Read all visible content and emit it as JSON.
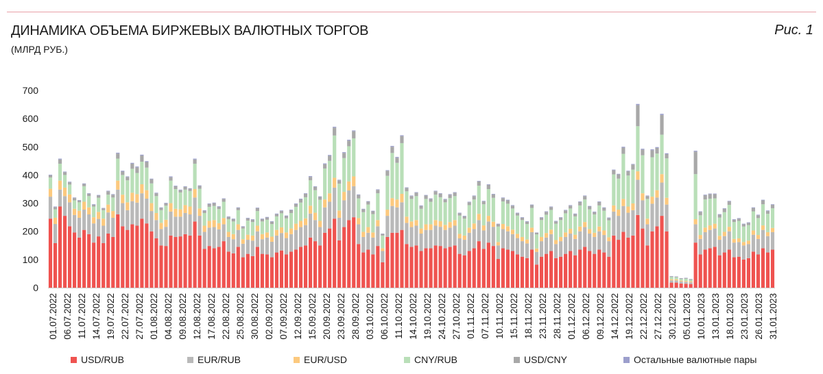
{
  "header": {
    "title": "ДИНАМИКА ОБЪЕМА БИРЖЕВЫХ ВАЛЮТНЫХ ТОРГОВ",
    "subtitle": "(МЛРД РУБ.)",
    "figure_label": "Рис. 1"
  },
  "colors": {
    "accent_rule": "#e8a0a7",
    "usd_rub": "#ef5350",
    "eur_rub": "#b9b9b9",
    "eur_usd": "#fcc97e",
    "cny_rub": "#b9dfb8",
    "usd_cny": "#a8a8a8",
    "other": "#9c9fcc"
  },
  "chart_data": {
    "type": "bar",
    "stacked": true,
    "title": "ДИНАМИКА ОБЪЕМА БИРЖЕВЫХ ВАЛЮТНЫХ ТОРГОВ",
    "ylabel": "",
    "xlabel": "",
    "ylim": [
      0,
      700
    ],
    "yticks": [
      0,
      100,
      200,
      300,
      400,
      500,
      600,
      700
    ],
    "grid": false,
    "legend_position": "bottom",
    "xtick_labels": [
      "01.07.2022",
      "06.07.2022",
      "11.07.2022",
      "14.07.2022",
      "19.07.2022",
      "22.07.2022",
      "27.07.2022",
      "01.08.2022",
      "04.08.2022",
      "09.08.2022",
      "12.08.2022",
      "17.08.2022",
      "22.08.2022",
      "25.08.2022",
      "30.08.2022",
      "02.09.2022",
      "07.09.2022",
      "12.09.2022",
      "15.09.2022",
      "20.09.2022",
      "23.09.2022",
      "28.09.2022",
      "03.10.2022",
      "06.10.2022",
      "11.10.2022",
      "14.10.2022",
      "19.10.2022",
      "24.10.2022",
      "27.10.2022",
      "01.11.2022",
      "07.11.2022",
      "10.11.2022",
      "15.11.2022",
      "18.11.2022",
      "23.11.2022",
      "28.11.2022",
      "01.12.2022",
      "06.12.2022",
      "09.12.2022",
      "14.12.2022",
      "19.12.2022",
      "22.12.2022",
      "27.12.2022",
      "30.12.2022",
      "05.01.2023",
      "10.01.2023",
      "13.01.2023",
      "18.01.2023",
      "23.01.2023",
      "26.01.2023",
      "31.01.2023"
    ],
    "series": [
      {
        "name": "USD/RUB",
        "values": [
          245,
          158,
          288,
          255,
          218,
          196,
          178,
          205,
          190,
          160,
          182,
          158,
          192,
          180,
          260,
          218,
          205,
          225,
          220,
          245,
          228,
          200,
          175,
          150,
          148,
          185,
          180,
          182,
          190,
          185,
          235,
          185,
          138,
          148,
          140,
          145,
          165,
          128,
          122,
          145,
          108,
          120,
          112,
          145,
          120,
          118,
          108,
          125,
          132,
          118,
          128,
          135,
          145,
          150,
          178,
          165,
          150,
          195,
          210,
          245,
          168,
          215,
          240,
          250,
          155,
          125,
          135,
          118,
          148,
          90,
          180,
          195,
          195,
          205,
          155,
          145,
          150,
          130,
          140,
          140,
          150,
          148,
          140,
          145,
          150,
          120,
          115,
          130,
          140,
          165,
          138,
          160,
          148,
          102,
          140,
          135,
          130,
          118,
          110,
          105,
          135,
          82,
          110,
          120,
          130,
          105,
          110,
          120,
          130,
          115,
          135,
          145,
          130,
          120,
          135,
          125,
          110,
          185,
          170,
          198,
          178,
          185,
          258,
          210,
          150,
          200,
          218,
          255,
          200,
          18,
          18,
          15,
          14,
          13,
          160,
          118,
          135,
          140,
          145,
          115,
          125,
          135,
          108,
          110,
          100,
          105,
          128,
          118,
          140,
          125,
          135
        ],
        "color_key": "usd_rub"
      },
      {
        "name": "EUR/RUB",
        "values": [
          78,
          68,
          60,
          70,
          85,
          62,
          70,
          72,
          70,
          68,
          62,
          62,
          75,
          68,
          88,
          82,
          70,
          82,
          82,
          90,
          88,
          72,
          65,
          58,
          68,
          85,
          72,
          70,
          75,
          75,
          85,
          70,
          60,
          65,
          75,
          62,
          60,
          52,
          50,
          60,
          48,
          50,
          55,
          55,
          52,
          60,
          55,
          60,
          62,
          58,
          62,
          70,
          70,
          72,
          85,
          75,
          65,
          90,
          95,
          110,
          80,
          95,
          105,
          110,
          70,
          55,
          60,
          60,
          70,
          40,
          75,
          95,
          90,
          98,
          75,
          70,
          70,
          62,
          65,
          65,
          70,
          68,
          65,
          68,
          70,
          55,
          55,
          65,
          68,
          75,
          65,
          75,
          68,
          48,
          68,
          65,
          60,
          58,
          55,
          52,
          62,
          45,
          55,
          58,
          60,
          50,
          55,
          60,
          62,
          58,
          65,
          70,
          62,
          60,
          65,
          62,
          55,
          85,
          85,
          92,
          88,
          90,
          125,
          100,
          75,
          98,
          102,
          118,
          95,
          8,
          8,
          7,
          7,
          6,
          65,
          55,
          62,
          65,
          65,
          55,
          58,
          65,
          52,
          52,
          50,
          50,
          60,
          55,
          65,
          58,
          62
        ],
        "color_key": "eur_rub"
      },
      {
        "name": "EUR/USD",
        "values": [
          28,
          22,
          32,
          30,
          28,
          22,
          25,
          28,
          25,
          22,
          25,
          25,
          28,
          24,
          32,
          30,
          28,
          30,
          30,
          32,
          30,
          28,
          25,
          22,
          25,
          30,
          28,
          26,
          28,
          28,
          30,
          26,
          22,
          24,
          25,
          22,
          22,
          18,
          18,
          20,
          16,
          18,
          18,
          20,
          18,
          18,
          18,
          20,
          20,
          20,
          20,
          22,
          22,
          24,
          28,
          26,
          22,
          28,
          30,
          35,
          26,
          30,
          32,
          35,
          22,
          18,
          20,
          18,
          22,
          10,
          22,
          28,
          28,
          30,
          22,
          20,
          20,
          18,
          20,
          20,
          20,
          20,
          18,
          20,
          20,
          16,
          15,
          18,
          20,
          22,
          18,
          20,
          18,
          12,
          18,
          18,
          16,
          15,
          15,
          14,
          16,
          12,
          15,
          16,
          16,
          14,
          15,
          16,
          17,
          15,
          17,
          18,
          16,
          15,
          17,
          16,
          14,
          22,
          22,
          25,
          22,
          24,
          30,
          25,
          20,
          25,
          26,
          30,
          24,
          4,
          4,
          3,
          3,
          3,
          18,
          14,
          16,
          16,
          17,
          14,
          15,
          16,
          13,
          13,
          12,
          12,
          15,
          14,
          16,
          14,
          15
        ],
        "color_key": "eur_usd"
      },
      {
        "name": "CNY/RUB",
        "values": [
          40,
          30,
          60,
          45,
          35,
          30,
          30,
          55,
          40,
          38,
          50,
          30,
          35,
          48,
          78,
          70,
          78,
          85,
          75,
          80,
          80,
          70,
          60,
          45,
          50,
          80,
          70,
          60,
          55,
          55,
          90,
          70,
          45,
          50,
          50,
          50,
          58,
          45,
          45,
          50,
          38,
          50,
          48,
          52,
          45,
          45,
          45,
          48,
          50,
          50,
          55,
          60,
          65,
          75,
          90,
          80,
          75,
          110,
          115,
          150,
          95,
          120,
          125,
          135,
          70,
          70,
          80,
          65,
          95,
          45,
          120,
          160,
          130,
          180,
          90,
          80,
          85,
          70,
          90,
          80,
          90,
          85,
          80,
          85,
          85,
          65,
          60,
          80,
          85,
          100,
          75,
          95,
          85,
          55,
          80,
          80,
          75,
          65,
          60,
          55,
          70,
          50,
          60,
          65,
          70,
          58,
          60,
          68,
          72,
          65,
          75,
          80,
          70,
          65,
          75,
          70,
          60,
          110,
          110,
          160,
          110,
          120,
          160,
          135,
          70,
          140,
          130,
          140,
          140,
          8,
          7,
          6,
          8,
          6,
          160,
          70,
          100,
          95,
          90,
          65,
          70,
          78,
          60,
          62,
          55,
          55,
          68,
          60,
          75,
          65,
          70
        ],
        "color_key": "cny_rub"
      },
      {
        "name": "USD/CNY",
        "values": [
          8,
          8,
          15,
          10,
          8,
          8,
          6,
          8,
          8,
          6,
          8,
          6,
          12,
          10,
          18,
          12,
          12,
          18,
          20,
          22,
          20,
          15,
          10,
          8,
          8,
          12,
          10,
          8,
          10,
          8,
          15,
          10,
          8,
          10,
          10,
          8,
          10,
          8,
          8,
          8,
          6,
          8,
          8,
          10,
          8,
          8,
          8,
          8,
          8,
          8,
          10,
          10,
          12,
          12,
          12,
          12,
          10,
          15,
          18,
          28,
          12,
          18,
          20,
          25,
          12,
          10,
          10,
          10,
          12,
          6,
          18,
          22,
          18,
          25,
          12,
          10,
          12,
          10,
          12,
          10,
          12,
          12,
          10,
          12,
          12,
          8,
          8,
          10,
          12,
          15,
          10,
          15,
          12,
          8,
          12,
          12,
          10,
          8,
          8,
          8,
          10,
          6,
          8,
          10,
          10,
          8,
          8,
          10,
          10,
          8,
          12,
          12,
          10,
          8,
          12,
          10,
          8,
          15,
          15,
          22,
          15,
          18,
          75,
          20,
          10,
          25,
          20,
          70,
          15,
          2,
          2,
          2,
          2,
          2,
          80,
          12,
          15,
          16,
          15,
          10,
          12,
          12,
          8,
          8,
          8,
          8,
          12,
          10,
          14,
          10,
          12
        ],
        "color_key": "usd_cny"
      },
      {
        "name": "Остальные валютные пары",
        "values": [
          2,
          2,
          3,
          2,
          2,
          2,
          2,
          2,
          2,
          2,
          2,
          2,
          2,
          2,
          3,
          3,
          2,
          3,
          3,
          3,
          3,
          2,
          2,
          2,
          2,
          3,
          2,
          2,
          2,
          2,
          3,
          2,
          2,
          2,
          2,
          2,
          2,
          2,
          2,
          2,
          2,
          2,
          2,
          2,
          2,
          2,
          2,
          2,
          2,
          2,
          2,
          2,
          2,
          2,
          3,
          2,
          2,
          3,
          3,
          3,
          2,
          3,
          3,
          3,
          2,
          2,
          2,
          2,
          2,
          1,
          2,
          3,
          3,
          3,
          2,
          2,
          2,
          2,
          2,
          2,
          2,
          2,
          2,
          2,
          2,
          2,
          2,
          2,
          2,
          2,
          2,
          2,
          2,
          2,
          2,
          2,
          2,
          2,
          2,
          2,
          2,
          1,
          2,
          2,
          2,
          2,
          2,
          2,
          2,
          2,
          2,
          2,
          2,
          2,
          2,
          2,
          2,
          2,
          2,
          3,
          2,
          2,
          4,
          3,
          2,
          3,
          3,
          4,
          3,
          1,
          1,
          1,
          1,
          1,
          3,
          2,
          2,
          2,
          2,
          2,
          2,
          2,
          2,
          2,
          2,
          2,
          2,
          2,
          2,
          2,
          2
        ],
        "color_key": "other"
      }
    ]
  }
}
